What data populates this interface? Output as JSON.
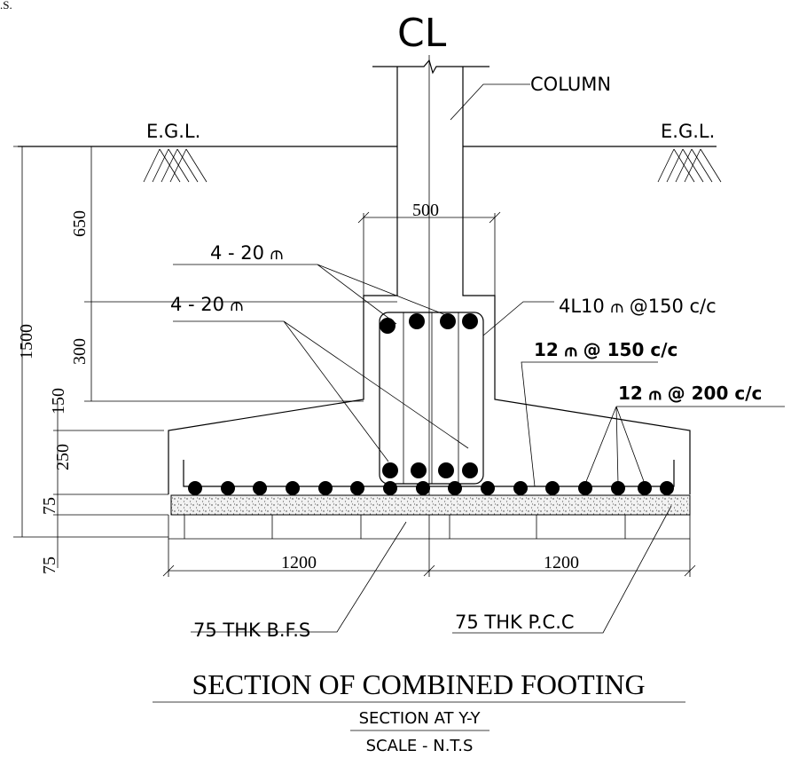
{
  "corner_note": ".S.",
  "centerline": "CL",
  "column": "COLUMN",
  "egl": [
    "E.G.L.",
    "E.G.L."
  ],
  "dimensions": {
    "pedestal_width": "500",
    "total_depth": "1500",
    "depth_upper": "650",
    "depth_pedestal": "300",
    "depth_haunch": "150",
    "depth_footing": "250",
    "depth_pcc": "75",
    "depth_bfs": "75",
    "half_width_left": "1200",
    "half_width_right": "1200"
  },
  "rebar": {
    "column_bars_top": "4 - 20 ⫙",
    "column_bars_bottom": "4 - 20 ⫙",
    "stirrups": "4L10 ⫙  @150 c/c",
    "bottom_bars": "12 ⫙ @ 150 c/c",
    "top_bars": "12 ⫙ @ 200 c/c"
  },
  "layers": {
    "bfs": "75 THK B.F.S",
    "pcc": "75 THK P.C.C"
  },
  "title": "SECTION OF COMBINED FOOTING",
  "subtitle": "SECTION AT Y-Y",
  "scale": "SCALE - N.T.S"
}
